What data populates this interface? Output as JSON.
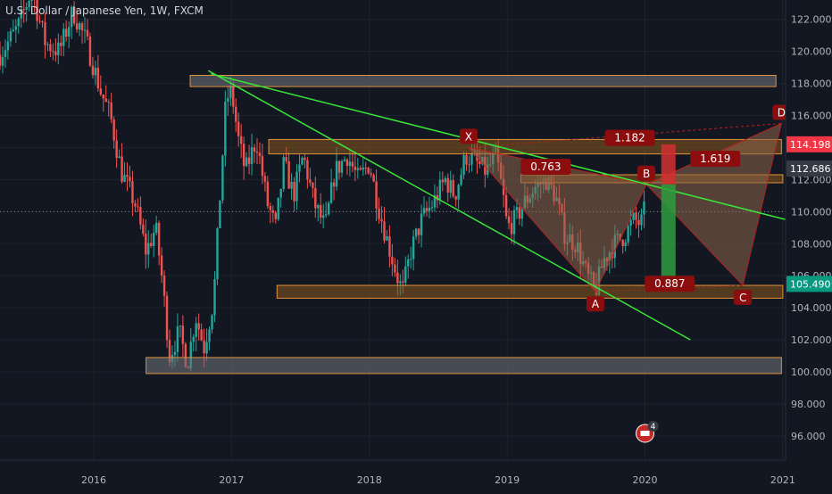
{
  "header": {
    "title": "U.S. Dollar / Japanese Yen, 1W, FXCM"
  },
  "colors": {
    "background": "#131722",
    "grid": "#1e222d",
    "axis_text": "#b2b5be",
    "bull": "#26a69a",
    "bear": "#ef5350",
    "trendline": "#39e639",
    "zone_orange_fill": "#8a5a1e",
    "zone_orange_border": "#e0913a",
    "zone_gray_fill": "#6b6e75",
    "harmonic_fill": "#8c6449",
    "harmonic_line": "#b22222",
    "label_box": "#8b0d0d",
    "label_red": "#f23645",
    "label_gray": "#363a45",
    "label_green": "#089981",
    "stop_red": "#d32f2f",
    "target_green": "#2e9e3e"
  },
  "chart_data": {
    "type": "candlestick",
    "title": "U.S. Dollar / Japanese Yen, 1W, FXCM",
    "xlabel": "",
    "ylabel": "",
    "ylim": [
      94.5,
      123.2
    ],
    "xlim": [
      2015.32,
      2021.02
    ],
    "grid": true,
    "y_ticks": [
      "96.000",
      "98.000",
      "100.000",
      "102.000",
      "104.000",
      "106.000",
      "108.000",
      "110.000",
      "112.000",
      "114.000",
      "116.000",
      "118.000",
      "120.000",
      "122.000"
    ],
    "x_ticks": [
      "2016",
      "2017",
      "2018",
      "2019",
      "2020",
      "2021"
    ],
    "x_tick_values": [
      2016,
      2017,
      2018,
      2019,
      2020,
      2021
    ],
    "price_path": [
      [
        2015.32,
        119.8
      ],
      [
        2015.45,
        121.5
      ],
      [
        2015.55,
        123.8
      ],
      [
        2015.65,
        120.5
      ],
      [
        2015.75,
        120.0
      ],
      [
        2015.85,
        122.5
      ],
      [
        2015.95,
        120.5
      ],
      [
        2016.05,
        117.5
      ],
      [
        2016.12,
        116.0
      ],
      [
        2016.2,
        112.5
      ],
      [
        2016.3,
        110.5
      ],
      [
        2016.38,
        107.5
      ],
      [
        2016.45,
        109.0
      ],
      [
        2016.5,
        105.5
      ],
      [
        2016.55,
        101.0
      ],
      [
        2016.62,
        102.5
      ],
      [
        2016.68,
        100.5
      ],
      [
        2016.74,
        103.5
      ],
      [
        2016.8,
        101.5
      ],
      [
        2016.87,
        104.5
      ],
      [
        2016.92,
        111.5
      ],
      [
        2016.96,
        117.0
      ],
      [
        2017.0,
        117.5
      ],
      [
        2017.05,
        114.5
      ],
      [
        2017.1,
        112.5
      ],
      [
        2017.18,
        114.5
      ],
      [
        2017.26,
        110.5
      ],
      [
        2017.32,
        109.0
      ],
      [
        2017.38,
        113.0
      ],
      [
        2017.45,
        111.0
      ],
      [
        2017.52,
        113.5
      ],
      [
        2017.6,
        110.5
      ],
      [
        2017.68,
        109.0
      ],
      [
        2017.75,
        112.5
      ],
      [
        2017.84,
        113.5
      ],
      [
        2017.92,
        112.0
      ],
      [
        2018.0,
        113.0
      ],
      [
        2018.06,
        110.5
      ],
      [
        2018.12,
        108.5
      ],
      [
        2018.2,
        106.0
      ],
      [
        2018.24,
        105.0
      ],
      [
        2018.3,
        107.5
      ],
      [
        2018.38,
        109.5
      ],
      [
        2018.46,
        110.5
      ],
      [
        2018.55,
        112.0
      ],
      [
        2018.62,
        111.0
      ],
      [
        2018.7,
        113.5
      ],
      [
        2018.78,
        113.0
      ],
      [
        2018.85,
        112.5
      ],
      [
        2018.92,
        113.5
      ],
      [
        2018.97,
        111.0
      ],
      [
        2019.0,
        109.0
      ],
      [
        2019.06,
        109.5
      ],
      [
        2019.12,
        110.5
      ],
      [
        2019.2,
        111.5
      ],
      [
        2019.28,
        112.0
      ],
      [
        2019.35,
        111.0
      ],
      [
        2019.42,
        108.5
      ],
      [
        2019.5,
        108.0
      ],
      [
        2019.58,
        106.0
      ],
      [
        2019.64,
        105.0
      ],
      [
        2019.7,
        107.0
      ],
      [
        2019.78,
        108.0
      ],
      [
        2019.85,
        108.5
      ],
      [
        2019.92,
        109.5
      ],
      [
        2019.97,
        109.2
      ],
      [
        2020.0,
        110.2
      ]
    ],
    "zones": [
      {
        "id": "top-gray",
        "y1": 117.8,
        "y2": 118.5,
        "x1": 2016.7,
        "x2": 2020.95,
        "style": "gray"
      },
      {
        "id": "upper-orange",
        "y1": 113.6,
        "y2": 114.5,
        "x1": 2017.27,
        "x2": 2020.99,
        "style": "orange"
      },
      {
        "id": "mid-orange",
        "y1": 111.8,
        "y2": 112.3,
        "x1": 2019.1,
        "x2": 2021.0,
        "style": "orange"
      },
      {
        "id": "lower-orange",
        "y1": 104.6,
        "y2": 105.4,
        "x1": 2017.33,
        "x2": 2021.0,
        "style": "orange"
      },
      {
        "id": "bottom-gray",
        "y1": 99.9,
        "y2": 100.9,
        "x1": 2016.38,
        "x2": 2020.99,
        "style": "gray"
      }
    ],
    "trendlines": [
      {
        "id": "trendline-upper",
        "from": [
          2016.85,
          118.6
        ],
        "to": [
          2021.07,
          109.4
        ]
      },
      {
        "id": "trendline-lower",
        "from": [
          2016.83,
          118.8
        ],
        "to": [
          2020.33,
          102.0
        ]
      }
    ],
    "harmonic": {
      "points": [
        {
          "label": "X",
          "x": 2018.72,
          "y": 114.0
        },
        {
          "label": "A",
          "x": 2019.64,
          "y": 105.0
        },
        {
          "label": "B",
          "x": 2020.01,
          "y": 111.7
        },
        {
          "label": "C",
          "x": 2020.71,
          "y": 105.4
        },
        {
          "label": "D",
          "x": 2020.99,
          "y": 115.5
        }
      ],
      "ratios": [
        {
          "text": "0.763",
          "x": 2019.28,
          "y": 112.8
        },
        {
          "text": "1.182",
          "x": 2019.89,
          "y": 114.6
        },
        {
          "text": "1.619",
          "x": 2020.51,
          "y": 113.3
        },
        {
          "text": "0.887",
          "x": 2020.18,
          "y": 105.5
        }
      ]
    },
    "position": {
      "stop": {
        "y_top": 114.2,
        "y_bottom": 111.7,
        "x": 2020.17
      },
      "target": {
        "y_top": 111.7,
        "y_bottom": 105.5,
        "x": 2020.17
      }
    },
    "current_price": 110.0,
    "price_labels": [
      {
        "text": "114.198",
        "y": 114.198,
        "style": "red"
      },
      {
        "text": "112.686",
        "y": 112.686,
        "style": "gray"
      },
      {
        "text": "105.490",
        "y": 105.49,
        "style": "green"
      }
    ],
    "badge_count": "4"
  }
}
